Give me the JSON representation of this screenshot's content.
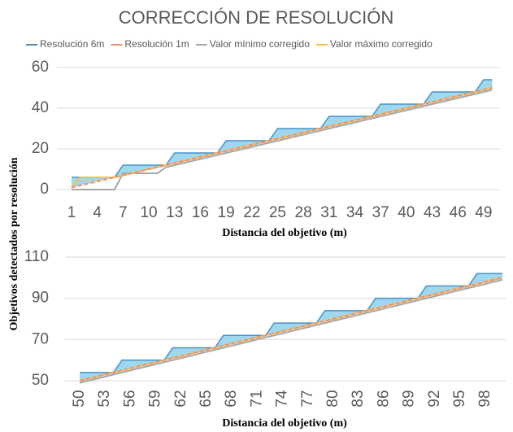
{
  "chart_data": [
    {
      "type": "line",
      "title": "CORRECCIÓN DE RESOLUCIÓN",
      "ylabel": "Objetivos detectados por resolución",
      "xlabel": "Distancia del objetivo (m)",
      "categories": [
        1,
        null,
        null,
        4,
        null,
        null,
        7,
        null,
        null,
        10,
        null,
        null,
        13,
        null,
        null,
        16,
        null,
        null,
        19,
        null,
        null,
        22,
        null,
        null,
        25,
        null,
        null,
        28,
        null,
        null,
        31,
        null,
        null,
        34,
        null,
        null,
        37,
        null,
        null,
        40,
        null,
        null,
        43,
        null,
        null,
        46,
        null,
        null,
        49,
        null
      ],
      "ylim": [
        0,
        60
      ],
      "yticks": [
        0,
        20,
        40,
        60
      ],
      "grid": true,
      "legend": "top",
      "series": [
        {
          "name": "Resolución 6m",
          "color": "#4a90c8",
          "fill": "#9fd7ee",
          "values": [
            6,
            6,
            6,
            6,
            6,
            6,
            12,
            12,
            12,
            12,
            12,
            12,
            18,
            18,
            18,
            18,
            18,
            18,
            24,
            24,
            24,
            24,
            24,
            24,
            30,
            30,
            30,
            30,
            30,
            30,
            36,
            36,
            36,
            36,
            36,
            36,
            42,
            42,
            42,
            42,
            42,
            42,
            48,
            48,
            48,
            48,
            48,
            48,
            54,
            54
          ]
        },
        {
          "name": "Resolución 1m",
          "color": "#f08c6c",
          "dashed": true,
          "values": [
            1,
            2,
            3,
            4,
            5,
            6,
            7,
            8,
            9,
            10,
            11,
            12,
            13,
            14,
            15,
            16,
            17,
            18,
            19,
            20,
            21,
            22,
            23,
            24,
            25,
            26,
            27,
            28,
            29,
            30,
            31,
            32,
            33,
            34,
            35,
            36,
            37,
            38,
            39,
            40,
            41,
            42,
            43,
            44,
            45,
            46,
            47,
            48,
            49,
            50
          ]
        },
        {
          "name": "Valor mínimo corregido",
          "color": "#a6a6a6",
          "values": [
            0,
            0,
            0,
            0,
            0,
            0,
            8,
            8,
            8,
            8,
            8,
            11,
            12,
            13,
            14,
            15,
            16,
            17,
            18,
            19,
            20,
            21,
            22,
            23,
            24,
            25,
            26,
            27,
            28,
            29,
            30,
            31,
            32,
            33,
            34,
            35,
            36,
            37,
            38,
            39,
            40,
            41,
            42,
            43,
            44,
            45,
            46,
            47,
            48,
            49
          ]
        },
        {
          "name": "Valor máximo corregido",
          "color": "#f5c242",
          "values": [
            1,
            6,
            6,
            6,
            6,
            6,
            7,
            8,
            9,
            10,
            11,
            12,
            13,
            14,
            15,
            16,
            17,
            18,
            19,
            20,
            21,
            22,
            23,
            24,
            25,
            26,
            27,
            28,
            29,
            30,
            31,
            32,
            33,
            34,
            35,
            36,
            37,
            38,
            39,
            40,
            41,
            42,
            43,
            44,
            45,
            46,
            47,
            48,
            49,
            50
          ]
        }
      ]
    },
    {
      "type": "line",
      "xlabel": "Distancia del objetivo (m)",
      "categories": [
        50,
        null,
        null,
        53,
        null,
        null,
        56,
        null,
        null,
        59,
        null,
        null,
        62,
        null,
        null,
        65,
        null,
        null,
        68,
        null,
        null,
        71,
        null,
        null,
        74,
        null,
        null,
        77,
        null,
        null,
        80,
        null,
        null,
        83,
        null,
        null,
        86,
        null,
        null,
        89,
        null,
        null,
        92,
        null,
        null,
        95,
        null,
        null,
        98,
        null,
        null
      ],
      "ylim": [
        50,
        110
      ],
      "yticks": [
        50,
        70,
        90,
        110
      ],
      "grid": true,
      "series": [
        {
          "color": "#4a90c8",
          "fill": "#9fd7ee",
          "values": [
            54,
            54,
            54,
            54,
            54,
            60,
            60,
            60,
            60,
            60,
            60,
            66,
            66,
            66,
            66,
            66,
            66,
            72,
            72,
            72,
            72,
            72,
            72,
            78,
            78,
            78,
            78,
            78,
            78,
            84,
            84,
            84,
            84,
            84,
            84,
            90,
            90,
            90,
            90,
            90,
            90,
            96,
            96,
            96,
            96,
            96,
            96,
            102,
            102,
            102,
            102
          ]
        },
        {
          "color": "#f08c6c",
          "dashed": true,
          "values": [
            50,
            51,
            52,
            53,
            54,
            55,
            56,
            57,
            58,
            59,
            60,
            61,
            62,
            63,
            64,
            65,
            66,
            67,
            68,
            69,
            70,
            71,
            72,
            73,
            74,
            75,
            76,
            77,
            78,
            79,
            80,
            81,
            82,
            83,
            84,
            85,
            86,
            87,
            88,
            89,
            90,
            91,
            92,
            93,
            94,
            95,
            96,
            97,
            98,
            99,
            100
          ]
        },
        {
          "color": "#a6a6a6",
          "values": [
            49,
            50,
            51,
            52,
            53,
            54,
            55,
            56,
            57,
            58,
            59,
            60,
            61,
            62,
            63,
            64,
            65,
            66,
            67,
            68,
            69,
            70,
            71,
            72,
            73,
            74,
            75,
            76,
            77,
            78,
            79,
            80,
            81,
            82,
            83,
            84,
            85,
            86,
            87,
            88,
            89,
            90,
            91,
            92,
            93,
            94,
            95,
            96,
            97,
            98,
            99
          ]
        },
        {
          "color": "#f5c242",
          "values": [
            50,
            51,
            52,
            53,
            54,
            55,
            56,
            57,
            58,
            59,
            60,
            61,
            62,
            63,
            64,
            65,
            66,
            67,
            68,
            69,
            70,
            71,
            72,
            73,
            74,
            75,
            76,
            77,
            78,
            79,
            80,
            81,
            82,
            83,
            84,
            85,
            86,
            87,
            88,
            89,
            90,
            91,
            92,
            93,
            94,
            95,
            96,
            97,
            98,
            99,
            100
          ]
        }
      ]
    }
  ]
}
